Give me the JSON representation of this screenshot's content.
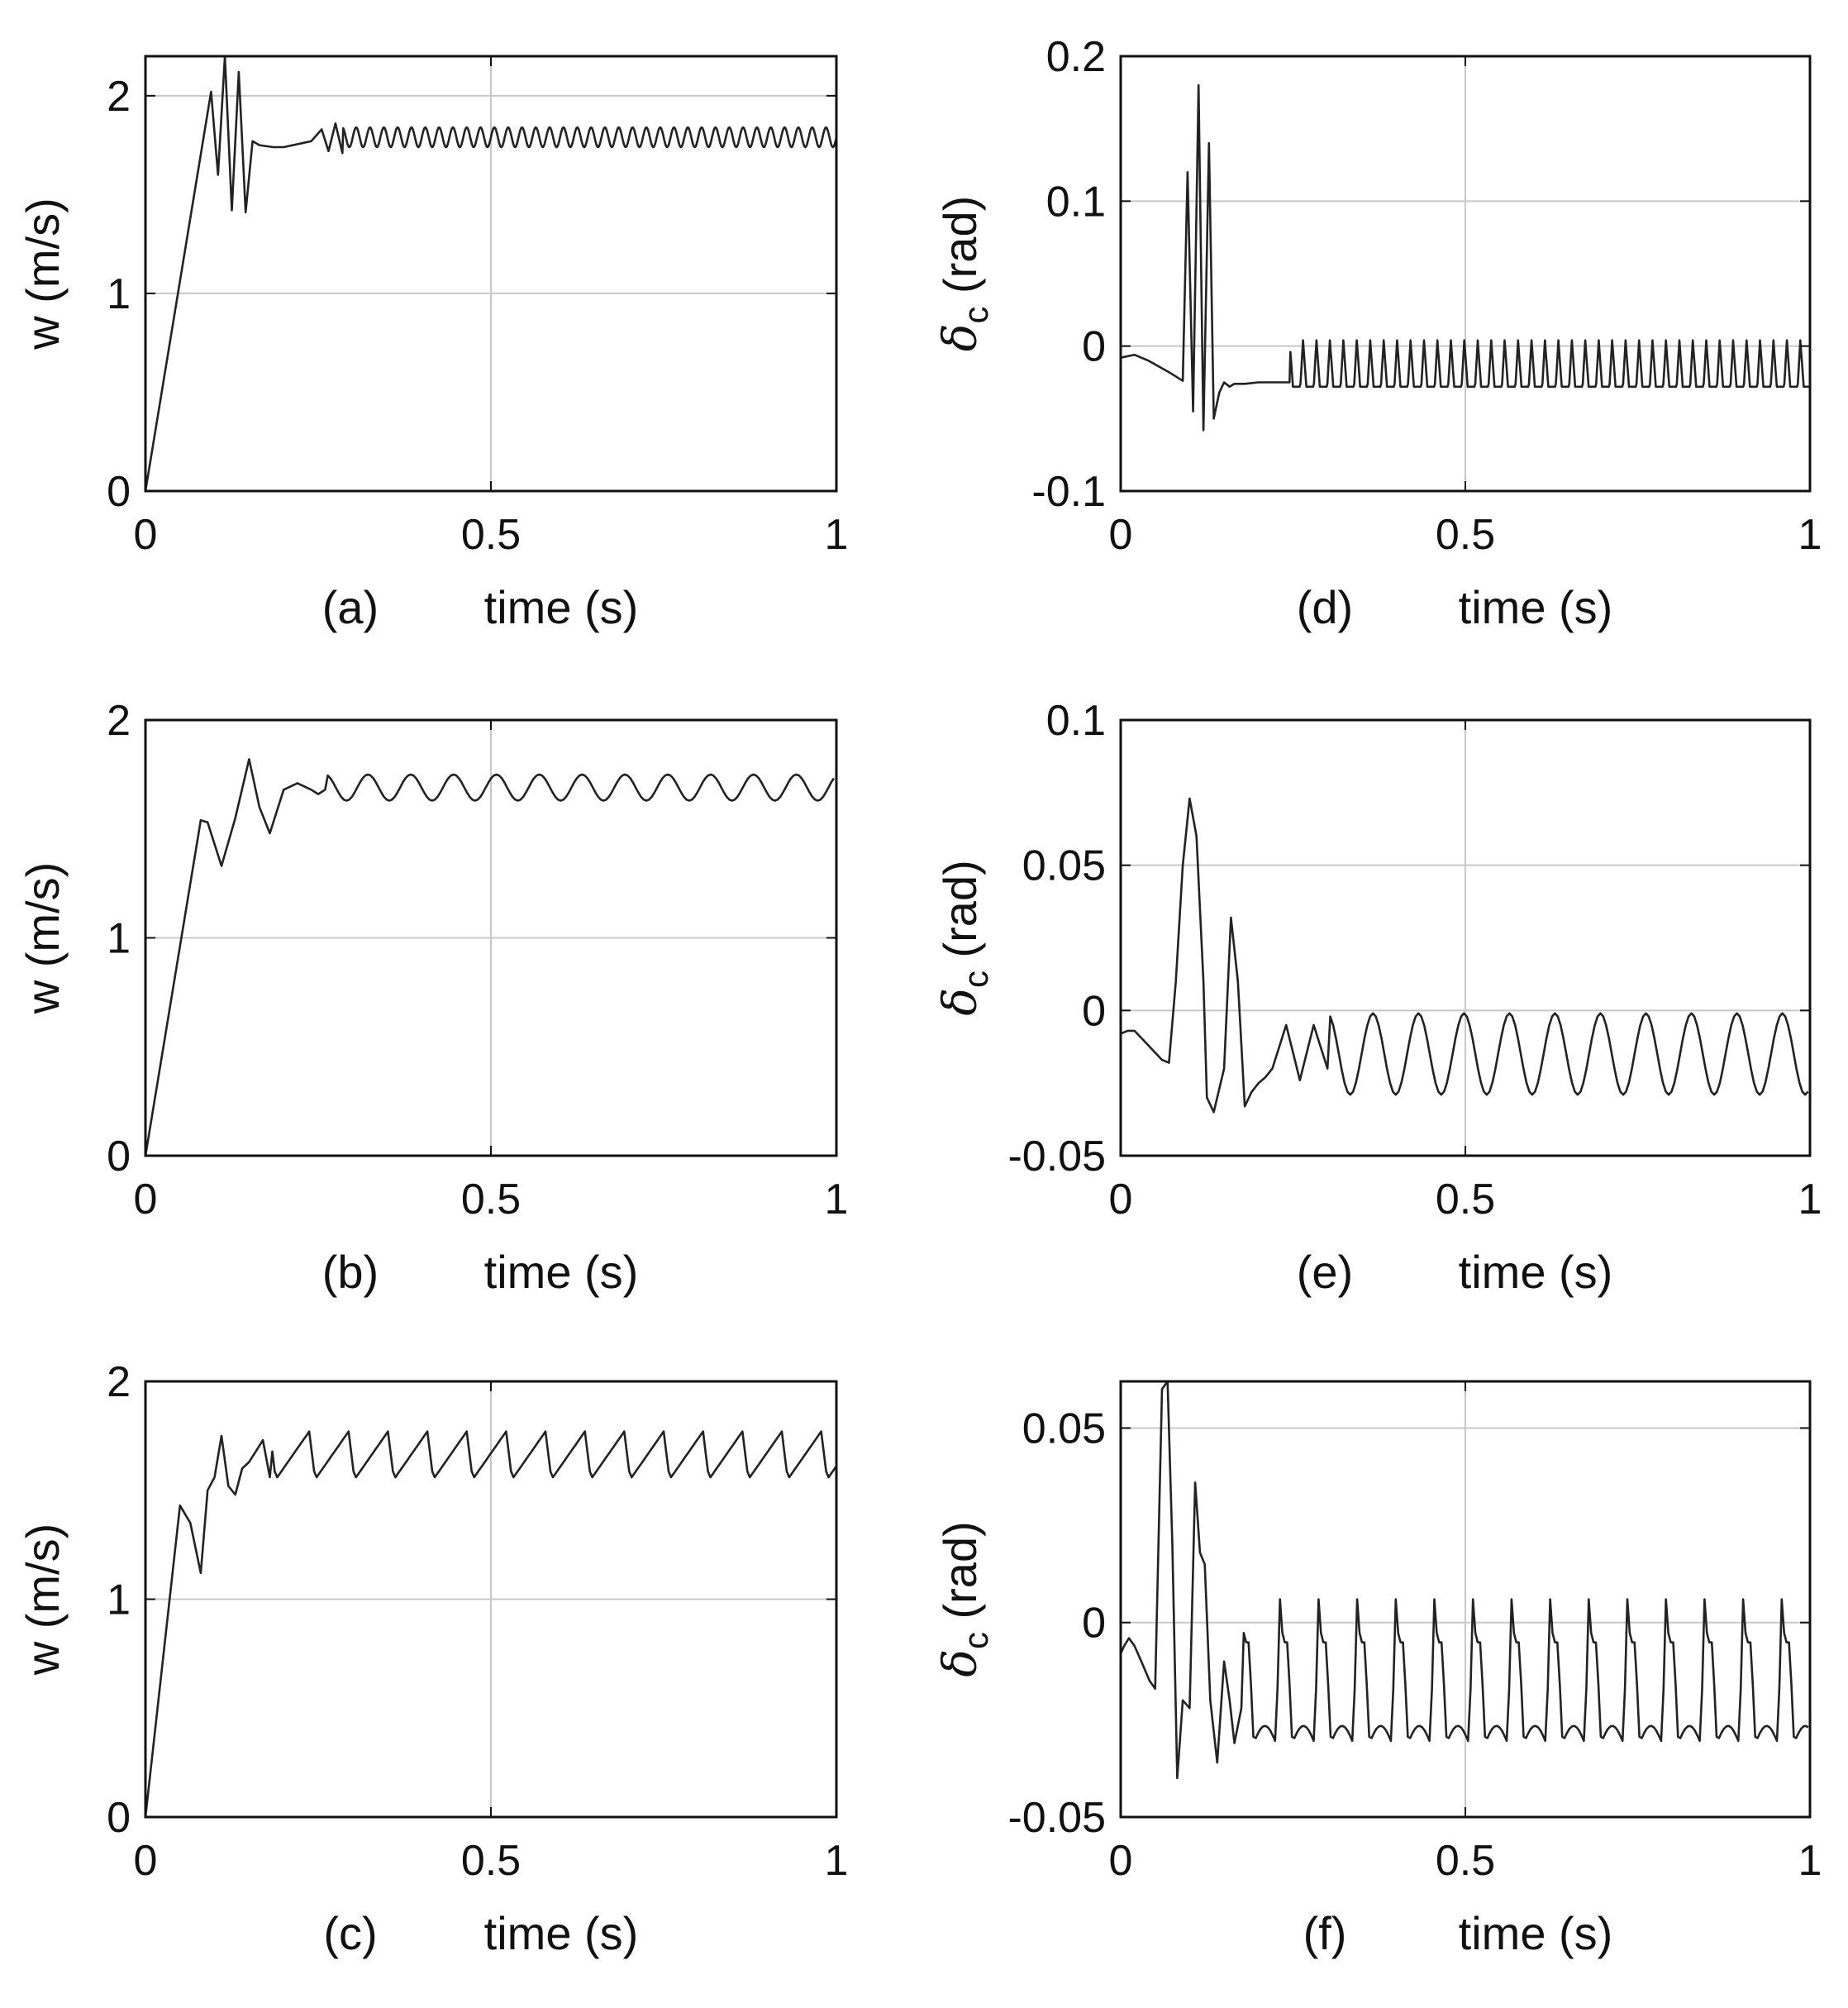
{
  "figure": {
    "line_color": "#222222",
    "grid_color": "#c8c8c8",
    "axis_color": "#111111"
  },
  "chart_data": [
    {
      "id": "a",
      "type": "line",
      "panel_label": "(a)",
      "xlabel": "time (s)",
      "ylabel": "w (m/s)",
      "ylabel_symbol": "",
      "xlim": [
        0,
        1
      ],
      "ylim": [
        0,
        2.2
      ],
      "xticks": [
        0,
        0.5,
        1
      ],
      "xtick_labels": [
        "0",
        "0.5",
        "1"
      ],
      "yticks": [
        0,
        1,
        2
      ],
      "ytick_labels": [
        "0",
        "1",
        "2"
      ],
      "grid": true,
      "series": [
        {
          "name": "w",
          "x": [
            0,
            0.095,
            0.105,
            0.115,
            0.125,
            0.135,
            0.145,
            0.155,
            0.165,
            0.185,
            0.2,
            0.24,
            0.255,
            0.265,
            0.275,
            0.285
          ],
          "y": [
            0,
            2.02,
            1.6,
            2.22,
            1.42,
            2.12,
            1.41,
            1.77,
            1.75,
            1.74,
            1.74,
            1.77,
            1.83,
            1.72,
            1.86,
            1.71
          ]
        }
      ],
      "oscillation": {
        "x_start": 0.285,
        "x_end": 1.0,
        "period": 0.02,
        "min": 1.74,
        "max": 1.84,
        "shape": "sine"
      }
    },
    {
      "id": "b",
      "type": "line",
      "panel_label": "(b)",
      "xlabel": "time (s)",
      "ylabel": "w (m/s)",
      "ylabel_symbol": "",
      "xlim": [
        0,
        1
      ],
      "ylim": [
        0,
        2
      ],
      "xticks": [
        0,
        0.5,
        1
      ],
      "xtick_labels": [
        "0",
        "0.5",
        "1"
      ],
      "yticks": [
        0,
        1,
        2
      ],
      "ytick_labels": [
        "0",
        "1",
        "2"
      ],
      "grid": true,
      "series": [
        {
          "name": "w",
          "x": [
            0,
            0.08,
            0.09,
            0.11,
            0.13,
            0.15,
            0.165,
            0.18,
            0.2,
            0.22,
            0.24,
            0.25,
            0.26
          ],
          "y": [
            0,
            1.54,
            1.53,
            1.33,
            1.55,
            1.82,
            1.6,
            1.48,
            1.68,
            1.71,
            1.68,
            1.66,
            1.68
          ]
        }
      ],
      "oscillation": {
        "x_start": 0.26,
        "x_end": 1.0,
        "period": 0.062,
        "min": 1.63,
        "max": 1.75,
        "shape": "sine"
      }
    },
    {
      "id": "c",
      "type": "line",
      "panel_label": "(c)",
      "xlabel": "time (s)",
      "ylabel": "w (m/s)",
      "ylabel_symbol": "",
      "xlim": [
        0,
        1
      ],
      "ylim": [
        0,
        2
      ],
      "xticks": [
        0,
        0.5,
        1
      ],
      "xtick_labels": [
        "0",
        "0.5",
        "1"
      ],
      "yticks": [
        0,
        1,
        2
      ],
      "ytick_labels": [
        "0",
        "1",
        "2"
      ],
      "grid": true,
      "series": [
        {
          "name": "w",
          "x": [
            0,
            0.05,
            0.065,
            0.08,
            0.09,
            0.1,
            0.11,
            0.12,
            0.13,
            0.14,
            0.15,
            0.16,
            0.17,
            0.18
          ],
          "y": [
            0,
            1.43,
            1.35,
            1.12,
            1.5,
            1.56,
            1.75,
            1.52,
            1.48,
            1.6,
            1.63,
            1.68,
            1.73,
            1.56
          ]
        }
      ],
      "oscillation": {
        "x_start": 0.18,
        "x_end": 1.0,
        "period": 0.057,
        "min": 1.55,
        "max": 1.77,
        "shape": "sawtooth"
      }
    },
    {
      "id": "d",
      "type": "line",
      "panel_label": "(d)",
      "xlabel": "time (s)",
      "ylabel": " (rad)",
      "ylabel_symbol": "δ",
      "ylabel_subscript": "c",
      "xlim": [
        0,
        1
      ],
      "ylim": [
        -0.1,
        0.2
      ],
      "xticks": [
        0,
        0.5,
        1
      ],
      "xtick_labels": [
        "0",
        "0.5",
        "1"
      ],
      "yticks": [
        -0.1,
        0,
        0.1,
        0.2
      ],
      "ytick_labels": [
        "-0.1",
        "0",
        "0.1",
        "0.2"
      ],
      "grid": true,
      "series": [
        {
          "name": "delta_c",
          "x": [
            0,
            0.01,
            0.02,
            0.04,
            0.07,
            0.09,
            0.097,
            0.105,
            0.113,
            0.12,
            0.128,
            0.135,
            0.143,
            0.15,
            0.158,
            0.165,
            0.18,
            0.2,
            0.23,
            0.245
          ],
          "y": [
            -0.008,
            -0.007,
            -0.006,
            -0.01,
            -0.018,
            -0.024,
            0.12,
            -0.045,
            0.18,
            -0.058,
            0.14,
            -0.05,
            -0.032,
            -0.025,
            -0.028,
            -0.026,
            -0.026,
            -0.025,
            -0.025,
            -0.025
          ]
        }
      ],
      "oscillation": {
        "x_start": 0.245,
        "x_end": 1.0,
        "period": 0.0195,
        "min": -0.028,
        "max": 0.004,
        "shape": "spike"
      }
    },
    {
      "id": "e",
      "type": "line",
      "panel_label": "(e)",
      "xlabel": "time (s)",
      "ylabel": " (rad)",
      "ylabel_symbol": "δ",
      "ylabel_subscript": "c",
      "xlim": [
        0,
        1
      ],
      "ylim": [
        -0.05,
        0.1
      ],
      "xticks": [
        0,
        0.5,
        1
      ],
      "xtick_labels": [
        "0",
        "0.5",
        "1"
      ],
      "yticks": [
        -0.05,
        0,
        0.05,
        0.1
      ],
      "ytick_labels": [
        "-0.05",
        "0",
        "0.05",
        "0.1"
      ],
      "grid": true,
      "series": [
        {
          "name": "delta_c",
          "x": [
            0,
            0.01,
            0.02,
            0.04,
            0.06,
            0.07,
            0.08,
            0.09,
            0.1,
            0.11,
            0.12,
            0.125,
            0.135,
            0.15,
            0.16,
            0.17,
            0.18,
            0.19,
            0.2,
            0.21,
            0.22,
            0.24,
            0.26,
            0.28,
            0.3
          ],
          "y": [
            -0.008,
            -0.007,
            -0.007,
            -0.012,
            -0.017,
            -0.018,
            0.01,
            0.05,
            0.073,
            0.06,
            0.01,
            -0.03,
            -0.035,
            -0.02,
            0.032,
            0.01,
            -0.033,
            -0.028,
            -0.025,
            -0.023,
            -0.02,
            -0.005,
            -0.024,
            -0.005,
            -0.02
          ]
        }
      ],
      "oscillation": {
        "x_start": 0.3,
        "x_end": 1.0,
        "period": 0.066,
        "min": -0.029,
        "max": -0.001,
        "shape": "sine"
      }
    },
    {
      "id": "f",
      "type": "line",
      "panel_label": "(f)",
      "xlabel": "time (s)",
      "ylabel": " (rad)",
      "ylabel_symbol": "δ",
      "ylabel_subscript": "c",
      "xlim": [
        0,
        1
      ],
      "ylim": [
        -0.05,
        0.062
      ],
      "xticks": [
        0,
        0.5,
        1
      ],
      "xtick_labels": [
        "0",
        "0.5",
        "1"
      ],
      "yticks": [
        -0.05,
        0,
        0.05
      ],
      "ytick_labels": [
        "-0.05",
        "0",
        "0.05"
      ],
      "grid": true,
      "series": [
        {
          "name": "delta_c",
          "x": [
            0,
            0.005,
            0.012,
            0.02,
            0.03,
            0.042,
            0.05,
            0.06,
            0.068,
            0.075,
            0.082,
            0.09,
            0.1,
            0.108,
            0.115,
            0.122,
            0.13,
            0.14,
            0.15,
            0.158,
            0.165,
            0.175
          ],
          "y": [
            -0.008,
            -0.006,
            -0.004,
            -0.006,
            -0.01,
            -0.015,
            -0.017,
            0.06,
            0.062,
            0.02,
            -0.04,
            -0.02,
            -0.022,
            0.036,
            0.018,
            0.015,
            -0.02,
            -0.036,
            -0.01,
            -0.02,
            -0.031,
            -0.022
          ]
        }
      ],
      "oscillation": {
        "x_start": 0.175,
        "x_end": 1.0,
        "period": 0.056,
        "min": -0.031,
        "max": 0.006,
        "shape": "pulse"
      }
    }
  ]
}
